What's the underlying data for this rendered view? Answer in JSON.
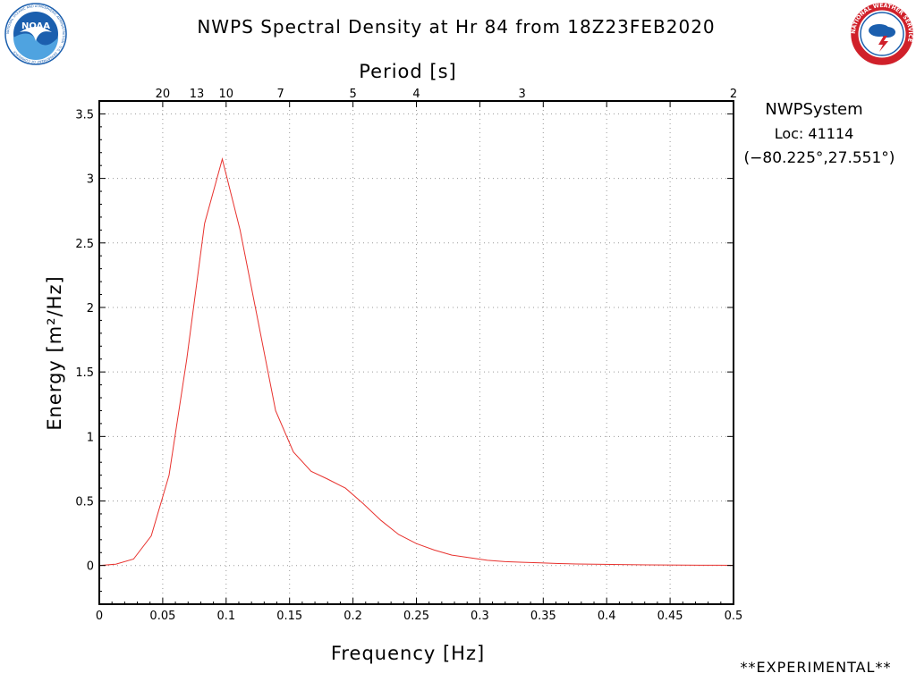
{
  "header": {
    "title": "NWPS Spectral Density at Hr 84 from 18Z23FEB2020"
  },
  "logos": {
    "left_icon": "noaa-logo-icon",
    "right_icon": "national-weather-service-logo-icon",
    "left_text": "NOAA",
    "left_ring_text": "NATIONAL OCEANIC AND ATMOSPHERIC ADMINISTRATION · U.S. DEPARTMENT OF COMMERCE",
    "right_ring_text": "NATIONAL WEATHER SERVICE"
  },
  "info": {
    "system": "NWPSystem",
    "location": "Loc: 41114",
    "coords": "(−80.225°,27.551°)"
  },
  "footer": {
    "note": "**EXPERIMENTAL**"
  },
  "colors": {
    "series": "#e8322e",
    "frame": "#000000",
    "grid": "#9a9a9a",
    "noaa_blue": "#1b5fae",
    "nws_red": "#d0202a"
  },
  "chart_data": {
    "type": "line",
    "title": "NWPS Spectral Density at Hr 84 from 18Z23FEB2020",
    "xlabel": "Frequency [Hz]",
    "ylabel": "Energy [m²/Hz]",
    "top_axis_label": "Period [s]",
    "xlim": [
      0,
      0.5
    ],
    "ylim": [
      -0.3,
      3.6
    ],
    "x_ticks": [
      0,
      0.05,
      0.1,
      0.15,
      0.2,
      0.25,
      0.3,
      0.35,
      0.4,
      0.45,
      0.5
    ],
    "x_tick_labels": [
      "0",
      "0.05",
      "0.1",
      "0.15",
      "0.2",
      "0.25",
      "0.3",
      "0.35",
      "0.4",
      "0.45",
      "0.5"
    ],
    "y_ticks": [
      0,
      0.5,
      1,
      1.5,
      2,
      2.5,
      3,
      3.5
    ],
    "y_tick_labels": [
      "0",
      "0.5",
      "1",
      "1.5",
      "2",
      "2.5",
      "3",
      "3.5"
    ],
    "period_ticks": [
      {
        "freq": 0.05,
        "label": "20"
      },
      {
        "freq": 0.0769,
        "label": "13"
      },
      {
        "freq": 0.1,
        "label": "10"
      },
      {
        "freq": 0.1429,
        "label": "7"
      },
      {
        "freq": 0.2,
        "label": "5"
      },
      {
        "freq": 0.25,
        "label": "4"
      },
      {
        "freq": 0.3333,
        "label": "3"
      },
      {
        "freq": 0.5,
        "label": "2"
      }
    ],
    "grid": true,
    "x": [
      0,
      0.013,
      0.027,
      0.041,
      0.055,
      0.069,
      0.083,
      0.097,
      0.111,
      0.125,
      0.139,
      0.153,
      0.167,
      0.18,
      0.194,
      0.208,
      0.222,
      0.236,
      0.25,
      0.264,
      0.278,
      0.292,
      0.306,
      0.32,
      0.334,
      0.348,
      0.362,
      0.376,
      0.39,
      0.404,
      0.418,
      0.432,
      0.446,
      0.46,
      0.474,
      0.488,
      0.5
    ],
    "series": [
      {
        "values": [
          0,
          0.01,
          0.05,
          0.23,
          0.7,
          1.6,
          2.65,
          3.15,
          2.6,
          1.9,
          1.2,
          0.88,
          0.73,
          0.67,
          0.6,
          0.48,
          0.35,
          0.24,
          0.17,
          0.12,
          0.08,
          0.06,
          0.04,
          0.03,
          0.025,
          0.02,
          0.015,
          0.012,
          0.01,
          0.008,
          0.006,
          0.005,
          0.004,
          0.003,
          0.002,
          0.002,
          0.001
        ]
      }
    ]
  }
}
